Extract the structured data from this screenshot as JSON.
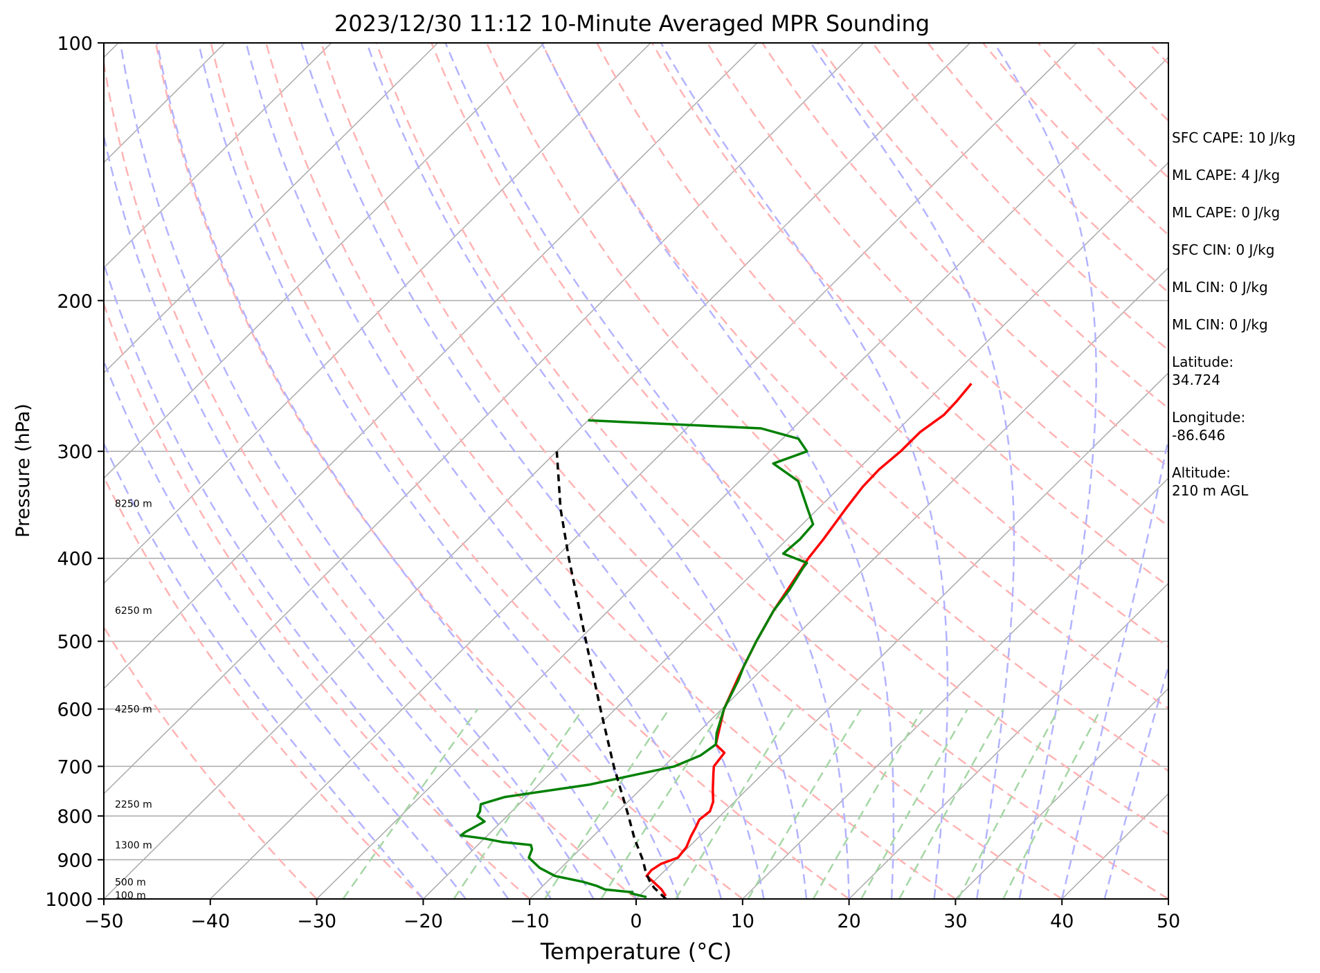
{
  "chart_data": {
    "type": "skew-t log-p sounding",
    "title": "2023/12/30 11:12 10-Minute Averaged MPR Sounding",
    "xlabel": "Temperature (°C)",
    "ylabel": "Pressure (hPa)",
    "x_axis": {
      "lim": [
        -50,
        50
      ],
      "ticks": [
        -50,
        -40,
        -30,
        -20,
        -10,
        0,
        10,
        20,
        30,
        40,
        50
      ],
      "tick_labels": [
        "−50",
        "−40",
        "−30",
        "−20",
        "−10",
        "0",
        "10",
        "20",
        "30",
        "40",
        "50"
      ]
    },
    "y_axis": {
      "scale": "log",
      "lim": [
        1000,
        100
      ],
      "ticks": [
        1000,
        900,
        800,
        700,
        600,
        500,
        400,
        300,
        200,
        100
      ],
      "tick_labels": [
        "1000",
        "900",
        "800",
        "700",
        "600",
        "500",
        "400",
        "300",
        "200",
        "100"
      ]
    },
    "grid": true,
    "background_lines": {
      "isotherms_color": "#aaaaaa",
      "dry_adiabats_color": "#ffb3b3",
      "moist_adiabats_color": "#b3b3ff",
      "mixing_ratio_color": "#a5d6a5"
    },
    "height_labels": [
      "100 m",
      "500 m",
      "1300 m",
      "2250 m",
      "4250 m",
      "6250 m",
      "8250 m"
    ],
    "height_label_pressures": [
      990,
      955,
      865,
      775,
      600,
      460,
      345
    ],
    "series": [
      {
        "role": "temperature",
        "color": "#ff0000",
        "points": [
          [
            992,
            2.5
          ],
          [
            975,
            1.5
          ],
          [
            955,
            0.0
          ],
          [
            940,
            -1.2
          ],
          [
            925,
            -1.3
          ],
          [
            910,
            -1.0
          ],
          [
            895,
            0.0
          ],
          [
            870,
            -0.2
          ],
          [
            845,
            -0.8
          ],
          [
            825,
            -1.2
          ],
          [
            808,
            -1.6
          ],
          [
            790,
            -1.4
          ],
          [
            770,
            -2.0
          ],
          [
            745,
            -3.2
          ],
          [
            715,
            -4.6
          ],
          [
            700,
            -5.3
          ],
          [
            675,
            -5.6
          ],
          [
            660,
            -7.2
          ],
          [
            600,
            -9.8
          ],
          [
            550,
            -11.5
          ],
          [
            500,
            -13.2
          ],
          [
            460,
            -14.5
          ],
          [
            420,
            -15.6
          ],
          [
            400,
            -16.2
          ],
          [
            380,
            -16.6
          ],
          [
            350,
            -17.4
          ],
          [
            330,
            -17.9
          ],
          [
            315,
            -18.0
          ],
          [
            300,
            -17.7
          ],
          [
            285,
            -17.7
          ],
          [
            272,
            -17.1
          ],
          [
            262,
            -17.2
          ],
          [
            250,
            -17.5
          ]
        ]
      },
      {
        "role": "dewpoint",
        "color": "#008000",
        "points": [
          [
            995,
            0.8
          ],
          [
            985,
            -1.0
          ],
          [
            982,
            -1.0
          ],
          [
            975,
            -3.8
          ],
          [
            965,
            -5.0
          ],
          [
            955,
            -6.6
          ],
          [
            940,
            -9.8
          ],
          [
            920,
            -12.0
          ],
          [
            895,
            -14.0
          ],
          [
            875,
            -14.5
          ],
          [
            865,
            -15.0
          ],
          [
            858,
            -18.0
          ],
          [
            850,
            -20.0
          ],
          [
            843,
            -22.5
          ],
          [
            835,
            -22.4
          ],
          [
            812,
            -21.6
          ],
          [
            800,
            -22.8
          ],
          [
            790,
            -23.0
          ],
          [
            775,
            -23.6
          ],
          [
            760,
            -22.0
          ],
          [
            735,
            -15.2
          ],
          [
            700,
            -9.0
          ],
          [
            680,
            -7.6
          ],
          [
            660,
            -7.2
          ],
          [
            640,
            -8.2
          ],
          [
            600,
            -9.8
          ],
          [
            555,
            -11.2
          ],
          [
            535,
            -12.0
          ],
          [
            500,
            -13.2
          ],
          [
            460,
            -14.5
          ],
          [
            435,
            -15.0
          ],
          [
            410,
            -15.8
          ],
          [
            405,
            -15.9
          ],
          [
            395,
            -19.0
          ],
          [
            380,
            -18.8
          ],
          [
            365,
            -19.0
          ],
          [
            350,
            -21.0
          ],
          [
            325,
            -24.5
          ],
          [
            310,
            -28.5
          ],
          [
            300,
            -26.5
          ],
          [
            290,
            -28.5
          ],
          [
            282,
            -33.0
          ],
          [
            276,
            -50.0
          ]
        ]
      },
      {
        "role": "parcel",
        "color": "#000000",
        "style": "dashed",
        "points": [
          [
            1000,
            2.8
          ],
          [
            970,
            0.6
          ],
          [
            950,
            -0.6
          ],
          [
            925,
            -1.9
          ],
          [
            900,
            -3.1
          ],
          [
            850,
            -5.9
          ],
          [
            800,
            -8.6
          ],
          [
            700,
            -14.7
          ],
          [
            600,
            -21.4
          ],
          [
            500,
            -29.2
          ],
          [
            400,
            -38.7
          ],
          [
            350,
            -44.2
          ],
          [
            300,
            -50.0
          ]
        ]
      }
    ]
  },
  "side_info": {
    "sfc_cape": "SFC CAPE: 10 J/kg",
    "ml_cape_1": "ML CAPE: 4 J/kg",
    "ml_cape_2": "ML CAPE: 0 J/kg",
    "sfc_cin": "SFC CIN: 0 J/kg",
    "ml_cin_1": "ML CIN: 0 J/kg",
    "ml_cin_2": "ML CIN: 0 J/kg",
    "latitude_label": "Latitude:",
    "latitude_value": "34.724",
    "longitude_label": "Longitude:",
    "longitude_value": "-86.646",
    "altitude_label": "Altitude:",
    "altitude_value": "210 m AGL"
  }
}
